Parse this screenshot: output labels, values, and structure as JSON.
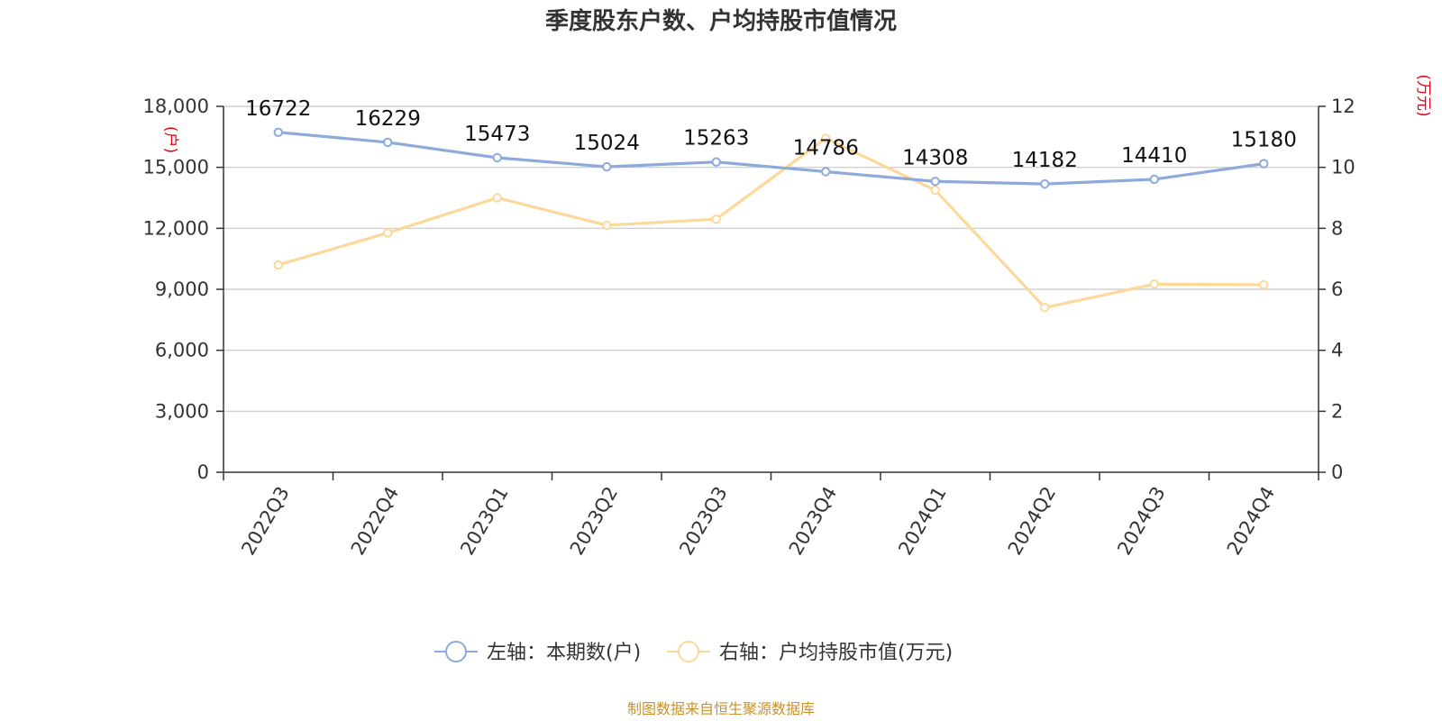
{
  "chart_data": {
    "type": "line",
    "title": "季度股东户数、户均持股市值情况",
    "categories": [
      "2022Q3",
      "2022Q4",
      "2023Q1",
      "2023Q2",
      "2023Q3",
      "2023Q4",
      "2024Q1",
      "2024Q2",
      "2024Q3",
      "2024Q4"
    ],
    "y_left": {
      "unit": "(户)",
      "range": [
        0,
        18000
      ],
      "ticks": [
        "0",
        "3,000",
        "6,000",
        "9,000",
        "12,000",
        "15,000",
        "18,000"
      ]
    },
    "y_right": {
      "unit": "(万元)",
      "range": [
        0,
        12
      ],
      "ticks": [
        "0",
        "2",
        "4",
        "6",
        "8",
        "10",
        "12"
      ]
    },
    "grid": true,
    "legend_position": "bottom",
    "series": [
      {
        "name": "左轴：本期数(户)",
        "axis": "left",
        "color": "#8eaadb",
        "values": [
          16722,
          16229,
          15473,
          15024,
          15263,
          14786,
          14308,
          14182,
          14410,
          15180
        ],
        "labels": [
          "16722",
          "16229",
          "15473",
          "15024",
          "15263",
          "14786",
          "14308",
          "14182",
          "14410",
          "15180"
        ]
      },
      {
        "name": "右轴：户均持股市值(万元)",
        "axis": "right",
        "color": "#fcd99a",
        "values": [
          6.8,
          7.85,
          9.0,
          8.1,
          8.3,
          10.95,
          9.25,
          5.4,
          6.17,
          6.15
        ]
      }
    ]
  },
  "source": "制图数据来自恒生聚源数据库"
}
